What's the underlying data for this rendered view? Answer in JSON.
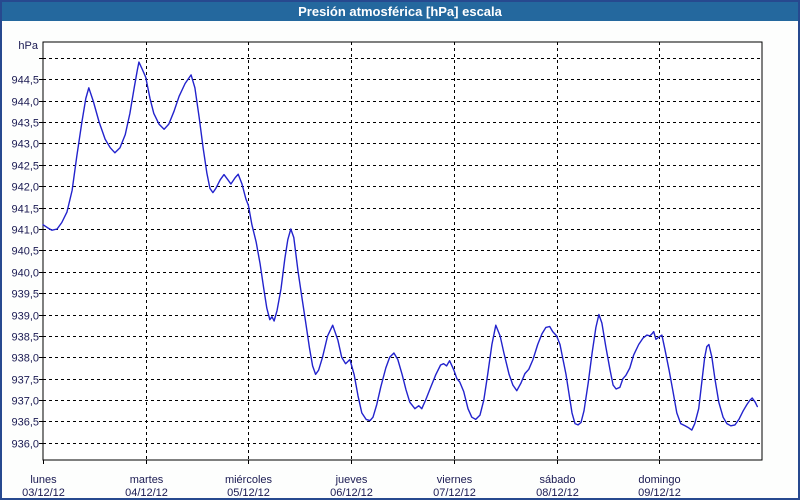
{
  "titlebar": {
    "text": "Presión atmosférica [hPa] escala"
  },
  "chart_data": {
    "type": "line",
    "title": "Presión atmosférica [hPa] escala",
    "ylabel": "hPa",
    "xlabel": "",
    "x_unit": "hours since lunes 03/12/12 00:00",
    "xlim": [
      0,
      168
    ],
    "ylim": [
      935.6,
      945.37
    ],
    "grid": "dashed-black",
    "legend": "none",
    "colors": {
      "titlebar_bg": "#24689E",
      "titlebar_text": "#ffffff",
      "frame": "#27498f",
      "line": "#2323cd",
      "grid": "#000000",
      "plot_border": "#000000",
      "label_text": "#1a1a52",
      "plot_bg": "#ffffff"
    },
    "y_ticks": [
      {
        "v": 936.0,
        "label": "936,0"
      },
      {
        "v": 936.5,
        "label": "936,5"
      },
      {
        "v": 937.0,
        "label": "937,0"
      },
      {
        "v": 937.5,
        "label": "937,5"
      },
      {
        "v": 938.0,
        "label": "938,0"
      },
      {
        "v": 938.5,
        "label": "938,5"
      },
      {
        "v": 939.0,
        "label": "939,0"
      },
      {
        "v": 939.5,
        "label": "939,5"
      },
      {
        "v": 940.0,
        "label": "940,0"
      },
      {
        "v": 940.5,
        "label": "940,5"
      },
      {
        "v": 941.0,
        "label": "941,0"
      },
      {
        "v": 941.5,
        "label": "941,5"
      },
      {
        "v": 942.0,
        "label": "942,0"
      },
      {
        "v": 942.5,
        "label": "942,5"
      },
      {
        "v": 943.0,
        "label": "943,0"
      },
      {
        "v": 943.5,
        "label": "943,5"
      },
      {
        "v": 944.0,
        "label": "944,0"
      },
      {
        "v": 944.5,
        "label": "944,5"
      },
      {
        "v": 945.0,
        "label": ""
      }
    ],
    "x_days": [
      {
        "name": "lunes",
        "date": "03/12/12",
        "t": 0
      },
      {
        "name": "martes",
        "date": "04/12/12",
        "t": 24
      },
      {
        "name": "miércoles",
        "date": "05/12/12",
        "t": 48
      },
      {
        "name": "jueves",
        "date": "06/12/12",
        "t": 72
      },
      {
        "name": "viernes",
        "date": "07/12/12",
        "t": 96
      },
      {
        "name": "sábado",
        "date": "08/12/12",
        "t": 120
      },
      {
        "name": "domingo",
        "date": "09/12/12",
        "t": 144
      }
    ],
    "series": [
      {
        "name": "Presión atmosférica",
        "color": "#2323cd",
        "points": [
          [
            0,
            941.1
          ],
          [
            1.2,
            941.02
          ],
          [
            2.1,
            940.97
          ],
          [
            3.3,
            941.0
          ],
          [
            4.4,
            941.15
          ],
          [
            5.6,
            941.4
          ],
          [
            6.8,
            941.9
          ],
          [
            7.9,
            942.7
          ],
          [
            9.1,
            943.5
          ],
          [
            10.0,
            944.05
          ],
          [
            10.7,
            944.3
          ],
          [
            11.7,
            944.0
          ],
          [
            13.1,
            943.5
          ],
          [
            14.5,
            943.1
          ],
          [
            15.7,
            942.9
          ],
          [
            16.8,
            942.78
          ],
          [
            18.0,
            942.9
          ],
          [
            19.2,
            943.2
          ],
          [
            20.3,
            943.7
          ],
          [
            21.3,
            944.3
          ],
          [
            22.0,
            944.7
          ],
          [
            22.4,
            944.9
          ],
          [
            23.1,
            944.75
          ],
          [
            24.0,
            944.55
          ],
          [
            25.0,
            944.05
          ],
          [
            25.9,
            943.7
          ],
          [
            27.1,
            943.45
          ],
          [
            28.3,
            943.33
          ],
          [
            29.4,
            943.45
          ],
          [
            30.6,
            943.75
          ],
          [
            31.8,
            944.1
          ],
          [
            33.2,
            944.4
          ],
          [
            34.6,
            944.6
          ],
          [
            35.5,
            944.3
          ],
          [
            36.5,
            943.6
          ],
          [
            37.4,
            942.9
          ],
          [
            38.3,
            942.3
          ],
          [
            39.0,
            941.95
          ],
          [
            39.7,
            941.85
          ],
          [
            40.4,
            941.95
          ],
          [
            41.4,
            942.15
          ],
          [
            42.3,
            942.27
          ],
          [
            43.2,
            942.15
          ],
          [
            43.9,
            942.05
          ],
          [
            44.9,
            942.2
          ],
          [
            45.6,
            942.28
          ],
          [
            46.5,
            942.05
          ],
          [
            47.4,
            941.7
          ],
          [
            48.0,
            941.55
          ],
          [
            48.8,
            941.1
          ],
          [
            49.8,
            940.7
          ],
          [
            50.7,
            940.2
          ],
          [
            51.6,
            939.6
          ],
          [
            52.3,
            939.15
          ],
          [
            53.0,
            938.88
          ],
          [
            53.5,
            938.95
          ],
          [
            54.0,
            938.85
          ],
          [
            54.7,
            939.1
          ],
          [
            55.6,
            939.6
          ],
          [
            56.5,
            940.3
          ],
          [
            57.2,
            940.75
          ],
          [
            57.9,
            941.0
          ],
          [
            58.6,
            940.8
          ],
          [
            59.6,
            940.0
          ],
          [
            60.5,
            939.4
          ],
          [
            61.4,
            938.8
          ],
          [
            62.3,
            938.2
          ],
          [
            63.0,
            937.8
          ],
          [
            63.7,
            937.6
          ],
          [
            64.4,
            937.7
          ],
          [
            65.3,
            938.0
          ],
          [
            66.5,
            938.5
          ],
          [
            67.7,
            938.75
          ],
          [
            68.9,
            938.4
          ],
          [
            69.8,
            938.0
          ],
          [
            70.7,
            937.85
          ],
          [
            71.7,
            937.95
          ],
          [
            72.7,
            937.6
          ],
          [
            73.6,
            937.1
          ],
          [
            74.5,
            936.7
          ],
          [
            75.5,
            936.55
          ],
          [
            76.4,
            936.52
          ],
          [
            77.1,
            936.6
          ],
          [
            78.0,
            936.9
          ],
          [
            78.9,
            937.3
          ],
          [
            80.1,
            937.75
          ],
          [
            81.0,
            938.0
          ],
          [
            82.0,
            938.1
          ],
          [
            82.9,
            937.95
          ],
          [
            83.9,
            937.6
          ],
          [
            84.8,
            937.25
          ],
          [
            85.7,
            936.95
          ],
          [
            86.9,
            936.8
          ],
          [
            87.8,
            936.87
          ],
          [
            88.5,
            936.8
          ],
          [
            89.4,
            937.0
          ],
          [
            90.6,
            937.3
          ],
          [
            91.8,
            937.6
          ],
          [
            92.9,
            937.82
          ],
          [
            93.6,
            937.85
          ],
          [
            94.3,
            937.8
          ],
          [
            95.0,
            937.92
          ],
          [
            96.0,
            937.7
          ],
          [
            96.7,
            937.5
          ],
          [
            97.4,
            937.42
          ],
          [
            98.3,
            937.2
          ],
          [
            99.3,
            936.8
          ],
          [
            100.2,
            936.6
          ],
          [
            101.1,
            936.55
          ],
          [
            102.1,
            936.65
          ],
          [
            103.0,
            937.0
          ],
          [
            103.9,
            937.6
          ],
          [
            104.9,
            938.3
          ],
          [
            105.8,
            938.75
          ],
          [
            106.8,
            938.5
          ],
          [
            107.7,
            938.1
          ],
          [
            108.9,
            937.6
          ],
          [
            109.8,
            937.35
          ],
          [
            110.7,
            937.22
          ],
          [
            111.7,
            937.4
          ],
          [
            112.6,
            937.62
          ],
          [
            113.5,
            937.72
          ],
          [
            114.5,
            937.95
          ],
          [
            115.6,
            938.3
          ],
          [
            116.6,
            938.55
          ],
          [
            117.5,
            938.7
          ],
          [
            118.4,
            938.72
          ],
          [
            119.1,
            938.6
          ],
          [
            120.0,
            938.5
          ],
          [
            120.8,
            938.3
          ],
          [
            121.5,
            937.95
          ],
          [
            122.2,
            937.6
          ],
          [
            122.9,
            937.15
          ],
          [
            123.6,
            936.7
          ],
          [
            124.3,
            936.45
          ],
          [
            125.0,
            936.42
          ],
          [
            125.7,
            936.48
          ],
          [
            126.4,
            936.75
          ],
          [
            127.4,
            937.4
          ],
          [
            128.3,
            938.1
          ],
          [
            129.2,
            938.7
          ],
          [
            129.9,
            939.0
          ],
          [
            130.6,
            938.8
          ],
          [
            131.5,
            938.25
          ],
          [
            132.5,
            937.7
          ],
          [
            133.2,
            937.35
          ],
          [
            133.9,
            937.26
          ],
          [
            134.8,
            937.3
          ],
          [
            135.5,
            937.5
          ],
          [
            136.2,
            937.58
          ],
          [
            137.1,
            937.75
          ],
          [
            138.0,
            938.05
          ],
          [
            139.2,
            938.3
          ],
          [
            140.2,
            938.45
          ],
          [
            141.1,
            938.52
          ],
          [
            141.8,
            938.5
          ],
          [
            142.3,
            938.55
          ],
          [
            142.7,
            938.6
          ],
          [
            143.2,
            938.42
          ],
          [
            144.0,
            938.48
          ],
          [
            144.6,
            938.52
          ],
          [
            145.3,
            938.2
          ],
          [
            146.3,
            937.7
          ],
          [
            147.2,
            937.2
          ],
          [
            148.1,
            936.7
          ],
          [
            149.0,
            936.45
          ],
          [
            150.0,
            936.4
          ],
          [
            150.9,
            936.35
          ],
          [
            151.6,
            936.3
          ],
          [
            152.3,
            936.45
          ],
          [
            153.2,
            936.8
          ],
          [
            153.9,
            937.4
          ],
          [
            154.6,
            938.0
          ],
          [
            155.1,
            938.25
          ],
          [
            155.6,
            938.3
          ],
          [
            156.3,
            938.0
          ],
          [
            157.0,
            937.5
          ],
          [
            157.9,
            936.95
          ],
          [
            158.9,
            936.6
          ],
          [
            159.8,
            936.45
          ],
          [
            160.7,
            936.4
          ],
          [
            161.7,
            936.42
          ],
          [
            162.6,
            936.55
          ],
          [
            163.6,
            936.75
          ],
          [
            164.5,
            936.9
          ],
          [
            165.2,
            937.0
          ],
          [
            165.7,
            937.05
          ],
          [
            166.4,
            936.95
          ],
          [
            166.9,
            936.85
          ]
        ]
      }
    ]
  }
}
